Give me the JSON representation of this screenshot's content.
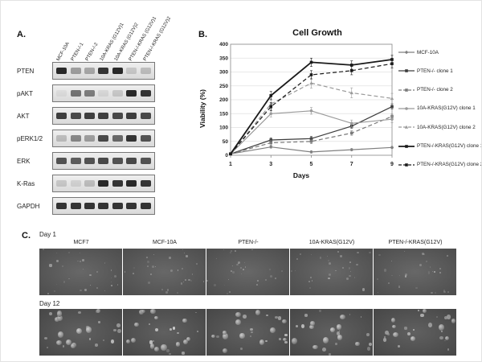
{
  "figure": {
    "panel_a_label": "A.",
    "panel_b_label": "B.",
    "panel_c_label": "C."
  },
  "panels": {
    "a": {
      "lane_labels": [
        "MCF-10A",
        "PTEN-/-1",
        "PTEN-/-2",
        "10A-KRAS (G12V)1",
        "10A-KRAS (G12V)2",
        "PTEN-/-KRAS (G12V)1",
        "PTEN-/-KRAS (G12V)2"
      ],
      "rows": [
        {
          "label": "PTEN",
          "bands": [
            0.9,
            0.35,
            0.3,
            0.85,
            0.9,
            0.15,
            0.2
          ]
        },
        {
          "label": "pAKT",
          "bands": [
            0.05,
            0.55,
            0.5,
            0.08,
            0.15,
            0.9,
            0.85
          ]
        },
        {
          "label": "AKT",
          "bands": [
            0.8,
            0.75,
            0.8,
            0.8,
            0.75,
            0.8,
            0.75
          ]
        },
        {
          "label": "pERK1/2",
          "bands": [
            0.2,
            0.45,
            0.35,
            0.75,
            0.6,
            0.85,
            0.7
          ]
        },
        {
          "label": "ERK",
          "bands": [
            0.7,
            0.65,
            0.7,
            0.75,
            0.7,
            0.75,
            0.7
          ]
        },
        {
          "label": "K-Ras",
          "bands": [
            0.15,
            0.1,
            0.2,
            0.9,
            0.85,
            0.9,
            0.85
          ]
        },
        {
          "label": "GAPDH",
          "bands": [
            0.85,
            0.85,
            0.85,
            0.85,
            0.85,
            0.85,
            0.85
          ]
        }
      ]
    },
    "c": {
      "day1_label": "Day 1",
      "day12_label": "Day 12",
      "column_labels": [
        "MCF7",
        "MCF-10A",
        "PTEN-/-",
        "10A-KRAS(G12V)",
        "PTEN-/-KRAS(G12V)"
      ]
    }
  },
  "chart_data": {
    "type": "line",
    "title": "Cell Growth",
    "xlabel": "Days",
    "ylabel": "Viability (%)",
    "x": [
      1,
      3,
      5,
      7,
      9
    ],
    "ylim": [
      0,
      400
    ],
    "ytick_step": 50,
    "grid": true,
    "legend_position": "right",
    "series": [
      {
        "name": "MCF-10A",
        "values": [
          5,
          30,
          12,
          20,
          28
        ],
        "color": "#7f7f7f",
        "dash": false,
        "marker": "diamond",
        "error": 4
      },
      {
        "name": "PTEN-/- clone 1",
        "values": [
          5,
          55,
          60,
          105,
          175
        ],
        "color": "#3d3d3d",
        "dash": false,
        "marker": "square",
        "error": 8
      },
      {
        "name": "PTEN-/- clone 2",
        "values": [
          5,
          45,
          50,
          80,
          140
        ],
        "color": "#7a7a7a",
        "dash": true,
        "marker": "square",
        "error": 8
      },
      {
        "name": "10A-KRAS(G12V) clone 1",
        "values": [
          5,
          150,
          160,
          115,
          130
        ],
        "color": "#9a9a9a",
        "dash": false,
        "marker": "circle",
        "error": 12
      },
      {
        "name": "10A-KRAS(G12V) clone 2",
        "values": [
          5,
          185,
          260,
          225,
          205
        ],
        "color": "#9a9a9a",
        "dash": true,
        "marker": "triangle",
        "error": 18
      },
      {
        "name": "PTEN-/-KRAS(G12V) clone 1",
        "values": [
          5,
          215,
          335,
          325,
          345
        ],
        "color": "#1a1a1a",
        "dash": false,
        "marker": "square",
        "error": 15
      },
      {
        "name": "PTEN-/-KRAS(G12V) clone 2",
        "values": [
          5,
          175,
          290,
          305,
          330
        ],
        "color": "#1a1a1a",
        "dash": true,
        "marker": "square",
        "error": 15
      }
    ]
  }
}
